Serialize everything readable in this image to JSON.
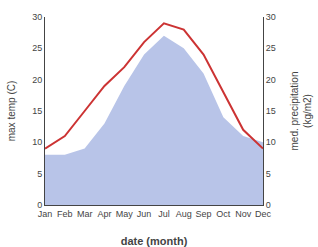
{
  "chart_data": {
    "type": "line",
    "categories": [
      "Jan",
      "Feb",
      "Mar",
      "Apr",
      "May",
      "Jun",
      "Jul",
      "Aug",
      "Sep",
      "Oct",
      "Nov",
      "Dec"
    ],
    "series": [
      {
        "type": "line",
        "color": "#cc3333",
        "values": [
          9,
          11,
          15,
          19,
          22,
          26,
          29,
          28,
          24,
          18,
          12,
          9
        ]
      },
      {
        "type": "area",
        "color": "#b8c4e8",
        "axis": "y2",
        "values": [
          8,
          8,
          9,
          13,
          19,
          24,
          27,
          25,
          21,
          14,
          11,
          10
        ]
      }
    ],
    "xlabel": "date (month)",
    "ylabel": "max temp (C)",
    "y2label": "med. precipitation\n(kg/m2)",
    "ylim": [
      0,
      30
    ],
    "yticks": [
      0,
      5,
      10,
      15,
      20,
      25,
      30
    ],
    "y2lim": [
      0,
      30
    ],
    "y2ticks": [
      0,
      5,
      10,
      15,
      20,
      25,
      30
    ],
    "grid": false
  }
}
